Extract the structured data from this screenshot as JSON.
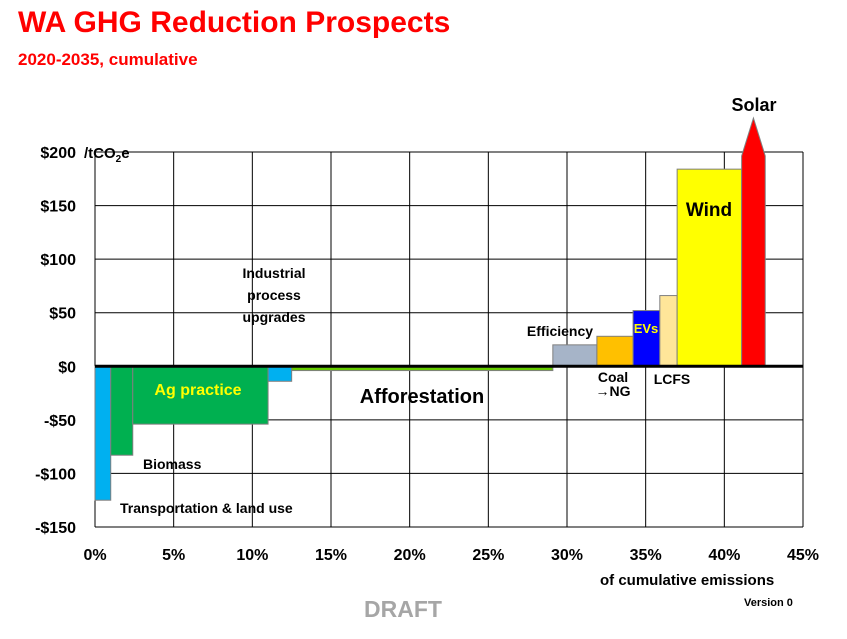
{
  "chart_data": {
    "type": "bar",
    "title": "WA GHG Reduction Prospects",
    "subtitle": "2020-2035, cumulative",
    "xlabel": "of cumulative emissions",
    "ylabel_unit_prefix": "/tCO",
    "ylabel_unit_sub": "2",
    "ylabel_unit_suffix": "e",
    "xlim": [
      0,
      45
    ],
    "ylim": [
      -150,
      200
    ],
    "x_ticks": [
      0,
      5,
      10,
      15,
      20,
      25,
      30,
      35,
      40,
      45
    ],
    "x_tick_labels": [
      "0%",
      "5%",
      "10%",
      "15%",
      "20%",
      "25%",
      "30%",
      "35%",
      "40%",
      "45%"
    ],
    "y_ticks": [
      200,
      150,
      100,
      50,
      0,
      -50,
      -100,
      -150
    ],
    "y_tick_labels": [
      "$200",
      "$150",
      "$100",
      "$50",
      "$0",
      "-$50",
      "-$100",
      "-$150"
    ],
    "grid": true,
    "bars": [
      {
        "name": "Transportation & land use",
        "x0": 0.0,
        "x1": 1.0,
        "value": -125,
        "color": "#00b0f0"
      },
      {
        "name": "Biomass",
        "x0": 1.0,
        "x1": 2.4,
        "value": -83,
        "color": "#00b050"
      },
      {
        "name": "Ag practice",
        "x0": 2.4,
        "x1": 11.0,
        "value": -54,
        "color": "#00b050"
      },
      {
        "name": "Industrial process upgrades",
        "x0": 11.0,
        "x1": 12.5,
        "value": -14,
        "color": "#00b0f0"
      },
      {
        "name": "Afforestation",
        "x0": 12.5,
        "x1": 29.1,
        "value": -4,
        "color": "#66cc00"
      },
      {
        "name": "Efficiency",
        "x0": 29.1,
        "x1": 31.9,
        "value": 20,
        "color": "#a6b4c8"
      },
      {
        "name": "Coal →NG",
        "x0": 31.9,
        "x1": 34.2,
        "value": 28,
        "color": "#ffc000"
      },
      {
        "name": "EVs",
        "x0": 34.2,
        "x1": 35.9,
        "value": 52,
        "color": "#0000ff"
      },
      {
        "name": "LCFS",
        "x0": 35.9,
        "x1": 37.0,
        "value": 66,
        "color": "#ffe699"
      },
      {
        "name": "Wind",
        "x0": 37.0,
        "x1": 41.1,
        "value": 184,
        "color": "#ffff00"
      },
      {
        "name": "Solar",
        "x0": 41.1,
        "x1": 42.6,
        "value": 200,
        "color": "#ff0000",
        "arrow": true
      }
    ],
    "labels": {
      "transport": "Transportation & land use",
      "biomass": "Biomass",
      "ag": "Ag practice",
      "industrial_1": "Industrial",
      "industrial_2": "process",
      "industrial_3": "upgrades",
      "afforestation": "Afforestation",
      "efficiency": "Efficiency",
      "coal_1": "Coal",
      "coal_2": "→NG",
      "evs": "EVs",
      "lcfs": "LCFS",
      "wind": "Wind",
      "solar": "Solar"
    }
  },
  "footer": {
    "draft": "DRAFT",
    "version": "Version 0"
  }
}
